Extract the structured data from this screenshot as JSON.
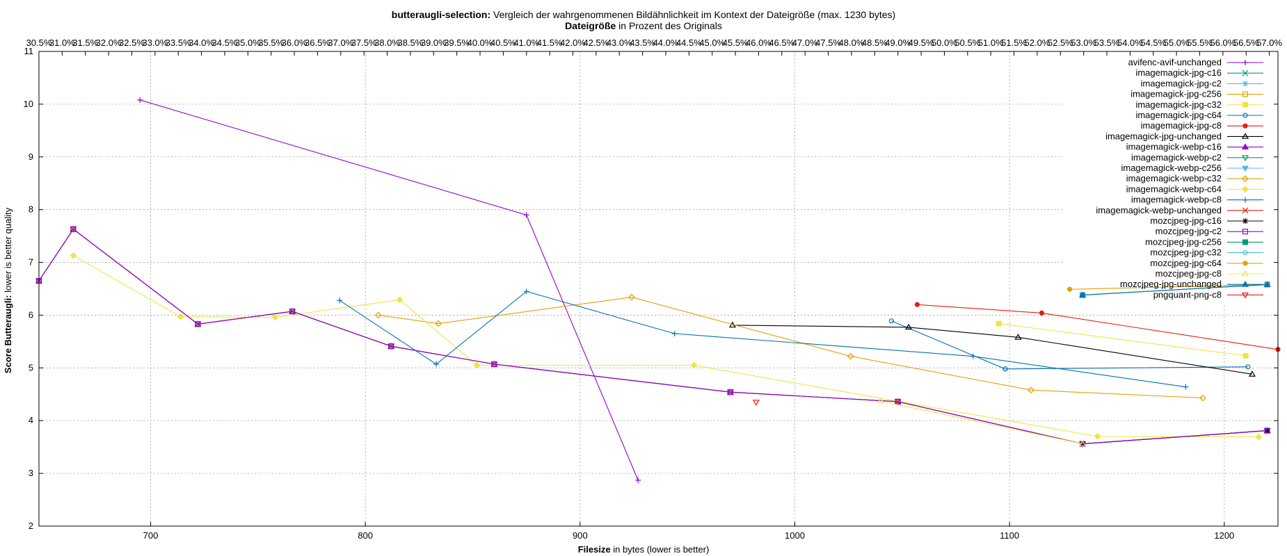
{
  "chart_data": {
    "type": "line",
    "title_bold": "butteraugli-selection:",
    "title_rest": " Vergleich der wahrgenommenen Bildähnlichkeit im Kontext der Dateigröße (max. 1230 bytes)",
    "x2label_bold": "Dateigröße",
    "x2label_rest": " in Prozent des Originals",
    "xlabel_bold": "Filesize",
    "xlabel_rest": " in bytes (lower is better)",
    "ylabel_bold": "Score Butteraugli:",
    "ylabel_rest": " lower is better quality",
    "xlim": [
      648,
      1225
    ],
    "ylim": [
      2,
      11
    ],
    "x_ticks": [
      700,
      800,
      900,
      1000,
      1100,
      1200
    ],
    "y_ticks": [
      2,
      3,
      4,
      5,
      6,
      7,
      8,
      9,
      10,
      11
    ],
    "x2_tick_labels": [
      "30.5%",
      "31.0%",
      "31.5%",
      "32.0%",
      "32.5%",
      "33.0%",
      "33.5%",
      "34.0%",
      "34.5%",
      "35.0%",
      "35.5%",
      "36.0%",
      "36.5%",
      "37.0%",
      "37.5%",
      "38.0%",
      "38.5%",
      "39.0%",
      "39.5%",
      "40.0%",
      "40.5%",
      "41.0%",
      "41.5%",
      "42.0%",
      "42.5%",
      "43.0%",
      "43.5%",
      "44.0%",
      "44.5%",
      "45.0%",
      "45.5%",
      "46.0%",
      "46.5%",
      "47.0%",
      "47.5%",
      "48.0%",
      "48.5%",
      "49.0%",
      "49.5%",
      "50.0%",
      "50.5%",
      "51.0%",
      "51.5%",
      "52.0%",
      "52.5%",
      "53.0%",
      "53.5%",
      "54.0%",
      "54.5%",
      "55.0%",
      "55.5%",
      "56.0%",
      "56.5%",
      "57.0%"
    ],
    "x2_start": 648,
    "x2_end": 1221,
    "grid": true,
    "legend_position": "top-right",
    "series": [
      {
        "name": "avifenc-avif-unchanged",
        "color": "#9400d3",
        "marker": "plus",
        "line": true,
        "points": [
          [
            695,
            10.08
          ],
          [
            875,
            7.9
          ],
          [
            927,
            2.87
          ]
        ]
      },
      {
        "name": "imagemagick-jpg-c16",
        "color": "#009e73",
        "marker": "cross",
        "line": true,
        "points": [
          [
            648,
            6.65
          ],
          [
            664,
            7.63
          ],
          [
            722,
            5.83
          ],
          [
            766,
            6.07
          ],
          [
            812,
            5.41
          ],
          [
            860,
            5.07
          ],
          [
            970,
            4.54
          ],
          [
            1048,
            4.36
          ],
          [
            1134,
            3.56
          ],
          [
            1220,
            3.81
          ]
        ]
      },
      {
        "name": "imagemagick-jpg-c2",
        "color": "#56b4e9",
        "marker": "star",
        "line": true,
        "points": [
          [
            648,
            6.65
          ],
          [
            664,
            7.63
          ],
          [
            722,
            5.83
          ],
          [
            766,
            6.07
          ],
          [
            812,
            5.41
          ],
          [
            860,
            5.07
          ],
          [
            970,
            4.54
          ],
          [
            1048,
            4.36
          ],
          [
            1134,
            3.56
          ],
          [
            1220,
            3.81
          ]
        ]
      },
      {
        "name": "imagemagick-jpg-c256",
        "color": "#e69f00",
        "marker": "square-open",
        "line": true,
        "points": [
          [
            648,
            6.65
          ],
          [
            664,
            7.63
          ],
          [
            722,
            5.83
          ],
          [
            766,
            6.07
          ],
          [
            812,
            5.41
          ],
          [
            860,
            5.07
          ],
          [
            970,
            4.54
          ],
          [
            1048,
            4.36
          ],
          [
            1134,
            3.56
          ],
          [
            1220,
            3.81
          ]
        ]
      },
      {
        "name": "imagemagick-jpg-c32",
        "color": "#f0e442",
        "marker": "square",
        "line": true,
        "points": [
          [
            1095,
            5.84
          ],
          [
            1210,
            5.23
          ]
        ]
      },
      {
        "name": "imagemagick-jpg-c64",
        "color": "#0072b2",
        "marker": "circle-open",
        "line": true,
        "points": [
          [
            1045,
            5.89
          ],
          [
            1098,
            4.98
          ],
          [
            1211,
            5.02
          ]
        ]
      },
      {
        "name": "imagemagick-jpg-c8",
        "color": "#e51e10",
        "marker": "circle",
        "line": true,
        "points": [
          [
            1057,
            6.2
          ],
          [
            1115,
            6.04
          ],
          [
            1225,
            5.35
          ]
        ]
      },
      {
        "name": "imagemagick-jpg-unchanged",
        "color": "#000000",
        "marker": "triangle-open",
        "line": true,
        "points": [
          [
            971,
            5.81
          ],
          [
            1053,
            5.77
          ],
          [
            1104,
            5.58
          ],
          [
            1213,
            4.88
          ]
        ]
      },
      {
        "name": "imagemagick-webp-c16",
        "color": "#9400d3",
        "marker": "triangle",
        "line": true,
        "points": [
          [
            648,
            6.65
          ],
          [
            664,
            7.63
          ],
          [
            722,
            5.83
          ],
          [
            766,
            6.07
          ],
          [
            812,
            5.41
          ],
          [
            860,
            5.07
          ],
          [
            970,
            4.54
          ],
          [
            1048,
            4.36
          ],
          [
            1134,
            3.56
          ],
          [
            1220,
            3.81
          ]
        ]
      },
      {
        "name": "imagemagick-webp-c2",
        "color": "#009e73",
        "marker": "triangle-down-open",
        "line": true,
        "points": [
          [
            648,
            6.65
          ],
          [
            664,
            7.63
          ],
          [
            722,
            5.83
          ],
          [
            766,
            6.07
          ],
          [
            812,
            5.41
          ],
          [
            860,
            5.07
          ],
          [
            970,
            4.54
          ],
          [
            1048,
            4.36
          ],
          [
            1134,
            3.56
          ],
          [
            1220,
            3.81
          ]
        ]
      },
      {
        "name": "imagemagick-webp-c256",
        "color": "#56b4e9",
        "marker": "triangle-down",
        "line": true,
        "points": [
          [
            648,
            6.65
          ],
          [
            664,
            7.63
          ],
          [
            722,
            5.83
          ],
          [
            766,
            6.07
          ],
          [
            812,
            5.41
          ],
          [
            860,
            5.07
          ],
          [
            970,
            4.54
          ],
          [
            1048,
            4.36
          ],
          [
            1134,
            3.56
          ],
          [
            1220,
            3.81
          ]
        ]
      },
      {
        "name": "imagemagick-webp-c32",
        "color": "#e69f00",
        "marker": "diamond-open",
        "line": true,
        "points": [
          [
            806,
            6.0
          ],
          [
            834,
            5.84
          ],
          [
            924,
            6.34
          ],
          [
            1026,
            5.22
          ],
          [
            1110,
            4.58
          ],
          [
            1190,
            4.43
          ]
        ]
      },
      {
        "name": "imagemagick-webp-c64",
        "color": "#f0e442",
        "marker": "diamond",
        "line": true,
        "points": [
          [
            664,
            7.13
          ],
          [
            714,
            5.97
          ],
          [
            758,
            5.96
          ],
          [
            816,
            6.29
          ],
          [
            852,
            5.05
          ],
          [
            953,
            5.05
          ],
          [
            1141,
            3.7
          ],
          [
            1216,
            3.69
          ]
        ]
      },
      {
        "name": "imagemagick-webp-c8",
        "color": "#0072b2",
        "marker": "plus",
        "line": true,
        "points": [
          [
            788,
            6.28
          ],
          [
            833,
            5.07
          ],
          [
            875,
            6.45
          ],
          [
            944,
            5.65
          ],
          [
            1083,
            5.22
          ],
          [
            1182,
            4.64
          ]
        ]
      },
      {
        "name": "imagemagick-webp-unchanged",
        "color": "#e51e10",
        "marker": "cross",
        "line": true,
        "points": [
          [
            648,
            6.65
          ],
          [
            664,
            7.63
          ],
          [
            722,
            5.83
          ],
          [
            766,
            6.07
          ],
          [
            812,
            5.41
          ],
          [
            860,
            5.07
          ],
          [
            970,
            4.54
          ],
          [
            1048,
            4.36
          ],
          [
            1134,
            3.56
          ],
          [
            1220,
            3.81
          ]
        ]
      },
      {
        "name": "mozcjpeg-jpg-c16",
        "color": "#000000",
        "marker": "star",
        "line": true,
        "points": [
          [
            1134,
            3.56
          ],
          [
            1220,
            3.81
          ]
        ]
      },
      {
        "name": "mozcjpeg-jpg-c2",
        "color": "#9400d3",
        "marker": "square-open",
        "line": true,
        "points": [
          [
            648,
            6.65
          ],
          [
            664,
            7.63
          ],
          [
            722,
            5.83
          ],
          [
            766,
            6.07
          ],
          [
            812,
            5.41
          ],
          [
            860,
            5.07
          ],
          [
            970,
            4.54
          ],
          [
            1048,
            4.36
          ],
          [
            1134,
            3.56
          ],
          [
            1220,
            3.81
          ]
        ]
      },
      {
        "name": "mozcjpeg-jpg-c256",
        "color": "#009e73",
        "marker": "square",
        "line": true,
        "points": [
          [
            1134,
            6.38
          ],
          [
            1220,
            6.58
          ]
        ]
      },
      {
        "name": "mozcjpeg-jpg-c32",
        "color": "#56b4e9",
        "marker": "circle-open",
        "line": true,
        "points": [
          [
            1134,
            6.38
          ],
          [
            1220,
            6.58
          ]
        ]
      },
      {
        "name": "mozcjpeg-jpg-c64",
        "color": "#e69f00",
        "marker": "circle",
        "line": true,
        "points": [
          [
            1128,
            6.49
          ],
          [
            1220,
            6.58
          ]
        ]
      },
      {
        "name": "mozcjpeg-jpg-c8",
        "color": "#f0e442",
        "marker": "triangle-open",
        "line": true,
        "points": [
          [
            1040,
            4.37
          ],
          [
            1134,
            3.56
          ]
        ]
      },
      {
        "name": "mozcjpeg-jpg-unchanged",
        "color": "#0072b2",
        "marker": "triangle",
        "line": true,
        "points": [
          [
            1134,
            6.38
          ],
          [
            1220,
            6.58
          ]
        ]
      },
      {
        "name": "pngquant-png-c8",
        "color": "#e51e10",
        "marker": "triangle-down-open",
        "line": true,
        "points": [
          [
            982,
            4.35
          ]
        ]
      }
    ]
  }
}
